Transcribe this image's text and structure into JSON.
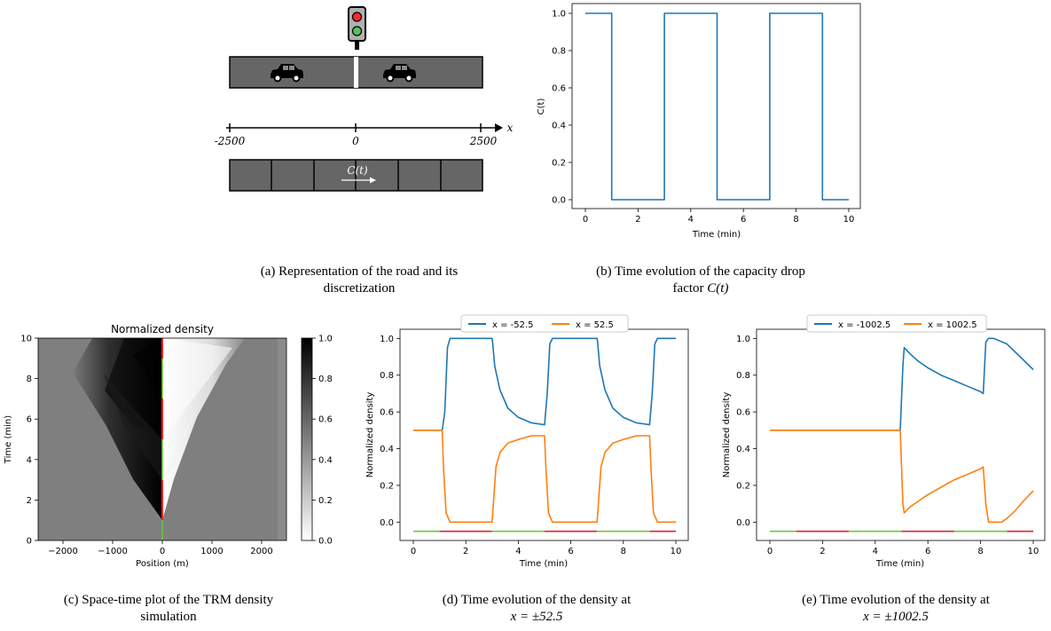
{
  "captions": {
    "a_line1": "(a) Representation of the road and its",
    "a_line2": "discretization",
    "b_line1": "(b) Time evolution of the capacity drop",
    "b_line2_prefix": "factor ",
    "b_line2_math": "C(t)",
    "c_line1": "(c) Space-time plot of the TRM density",
    "c_line2": "simulation",
    "d_line1": "(d) Time evolution of the density at",
    "d_line2": "x = ±52.5",
    "e_line1": "(e) Time evolution of the density at",
    "e_line2": "x = ±1002.5"
  },
  "diagram": {
    "axis_var": "x",
    "ticks": [
      "-2500",
      "0",
      "2500"
    ],
    "cell_label": "C(t)",
    "icons": [
      "traffic-light-icon",
      "car-icon",
      "car-icon"
    ]
  },
  "colors": {
    "blue": "#1f77b4",
    "orange": "#ff7f0e",
    "green": "#66cc33",
    "red": "#e8202a",
    "road": "#666666"
  },
  "chart_data": [
    {
      "id": "b",
      "type": "line",
      "xlabel": "Time (min)",
      "ylabel": "C(t)",
      "xlim": [
        0,
        10
      ],
      "ylim": [
        0,
        1
      ],
      "xticks": [
        "0",
        "2",
        "4",
        "6",
        "8",
        "10"
      ],
      "yticks": [
        "0.0",
        "0.2",
        "0.4",
        "0.6",
        "0.8",
        "1.0"
      ],
      "series": [
        {
          "x": [
            0,
            1,
            1,
            3,
            3,
            5,
            5,
            7,
            7,
            9,
            9,
            10
          ],
          "y": [
            1,
            1,
            0,
            0,
            1,
            1,
            0,
            0,
            1,
            1,
            0,
            0
          ]
        }
      ]
    },
    {
      "id": "c",
      "type": "heatmap",
      "title": "Normalized density",
      "xlabel": "Position (m)",
      "ylabel": "Time (min)",
      "xlim": [
        -2500,
        2500
      ],
      "ylim": [
        0,
        10
      ],
      "xticks": [
        "−2000",
        "−1000",
        "0",
        "1000",
        "2000"
      ],
      "yticks": [
        "0",
        "2",
        "4",
        "6",
        "8",
        "10"
      ],
      "colorbar": {
        "ticks": [
          "0.0",
          "0.2",
          "0.4",
          "0.6",
          "0.8",
          "1.0"
        ],
        "range": [
          0,
          1
        ]
      }
    },
    {
      "id": "d",
      "type": "line",
      "xlabel": "Time (min)",
      "ylabel": "Normalized density",
      "xlim": [
        0,
        10
      ],
      "ylim": [
        -0.1,
        1.05
      ],
      "xticks": [
        "0",
        "2",
        "4",
        "6",
        "8",
        "10"
      ],
      "yticks": [
        "0.0",
        "0.2",
        "0.4",
        "0.6",
        "0.8",
        "1.0"
      ],
      "series": [
        {
          "name": "x = -52.5",
          "x": [
            0,
            1.1,
            1.2,
            1.3,
            1.4,
            3.0,
            3.02,
            3.1,
            3.3,
            3.6,
            4.0,
            4.5,
            5.0,
            5.1,
            5.2,
            5.3,
            7.0,
            7.02,
            7.1,
            7.3,
            7.6,
            8.0,
            8.5,
            9.0,
            9.1,
            9.2,
            9.3,
            10
          ],
          "y": [
            0.5,
            0.5,
            0.6,
            0.95,
            1.0,
            1.0,
            0.98,
            0.85,
            0.72,
            0.62,
            0.57,
            0.54,
            0.53,
            0.7,
            0.97,
            1.0,
            1.0,
            0.98,
            0.85,
            0.72,
            0.62,
            0.57,
            0.54,
            0.53,
            0.7,
            0.97,
            1.0,
            1.0
          ]
        },
        {
          "name": "x = 52.5",
          "x": [
            0,
            1.1,
            1.15,
            1.25,
            1.4,
            3.0,
            3.05,
            3.15,
            3.3,
            3.6,
            4.0,
            4.5,
            5.0,
            5.05,
            5.15,
            5.3,
            7.0,
            7.05,
            7.15,
            7.3,
            7.6,
            8.0,
            8.5,
            9.0,
            9.05,
            9.15,
            9.3,
            10
          ],
          "y": [
            0.5,
            0.5,
            0.3,
            0.05,
            0.0,
            0.0,
            0.1,
            0.3,
            0.38,
            0.43,
            0.45,
            0.47,
            0.47,
            0.3,
            0.05,
            0.0,
            0.0,
            0.1,
            0.3,
            0.38,
            0.43,
            0.45,
            0.47,
            0.47,
            0.3,
            0.05,
            0.0,
            0.0
          ]
        }
      ],
      "signal_bar": {
        "y": -0.05,
        "segments": [
          [
            0,
            1,
            "green"
          ],
          [
            1,
            3,
            "red"
          ],
          [
            3,
            5,
            "green"
          ],
          [
            5,
            7,
            "red"
          ],
          [
            7,
            9,
            "green"
          ],
          [
            9,
            10,
            "red"
          ]
        ]
      }
    },
    {
      "id": "e",
      "type": "line",
      "xlabel": "Time (min)",
      "ylabel": "Normalized density",
      "xlim": [
        0,
        10
      ],
      "ylim": [
        -0.1,
        1.05
      ],
      "xticks": [
        "0",
        "2",
        "4",
        "6",
        "8",
        "10"
      ],
      "yticks": [
        "0.0",
        "0.2",
        "0.4",
        "0.6",
        "0.8",
        "1.0"
      ],
      "series": [
        {
          "name": "x = -1002.5",
          "x": [
            0,
            4.95,
            5.05,
            5.1,
            5.3,
            5.6,
            6.0,
            6.5,
            7.0,
            7.5,
            8.0,
            8.1,
            8.2,
            8.3,
            8.5,
            9.0,
            9.5,
            10
          ],
          "y": [
            0.5,
            0.5,
            0.85,
            0.95,
            0.92,
            0.88,
            0.84,
            0.8,
            0.77,
            0.74,
            0.71,
            0.7,
            0.98,
            1.0,
            1.0,
            0.97,
            0.9,
            0.83
          ]
        },
        {
          "name": "x = 1002.5",
          "x": [
            0,
            4.95,
            5.05,
            5.1,
            5.3,
            5.6,
            6.0,
            6.5,
            7.0,
            7.5,
            8.0,
            8.1,
            8.2,
            8.3,
            8.8,
            9.0,
            9.3,
            9.6,
            10
          ],
          "y": [
            0.5,
            0.5,
            0.1,
            0.05,
            0.08,
            0.11,
            0.15,
            0.19,
            0.23,
            0.26,
            0.29,
            0.3,
            0.1,
            0.0,
            0.0,
            0.02,
            0.06,
            0.11,
            0.17
          ]
        }
      ],
      "signal_bar": {
        "y": -0.05,
        "segments": [
          [
            0,
            1,
            "green"
          ],
          [
            1,
            3,
            "red"
          ],
          [
            3,
            5,
            "green"
          ],
          [
            5,
            7,
            "red"
          ],
          [
            7,
            9,
            "green"
          ],
          [
            9,
            10,
            "red"
          ]
        ]
      }
    }
  ]
}
